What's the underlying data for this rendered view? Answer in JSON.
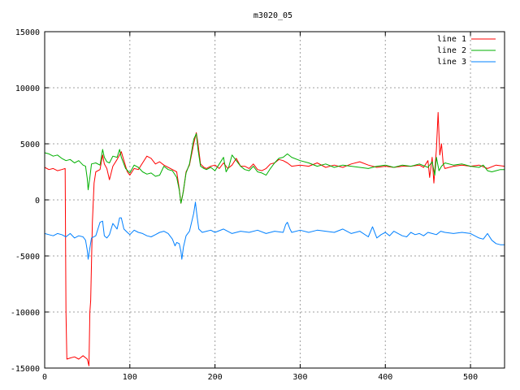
{
  "chart_data": {
    "type": "line",
    "title": "m3020_05",
    "xlabel": "",
    "ylabel": "",
    "xlim": [
      0,
      540
    ],
    "ylim": [
      -15000,
      15000
    ],
    "grid": true,
    "legend_position": "top-right",
    "x_ticks": [
      0,
      100,
      200,
      300,
      400,
      500
    ],
    "x_tick_labels": [
      "0",
      "100",
      "200",
      "300",
      "400",
      "500"
    ],
    "y_ticks": [
      -15000,
      -10000,
      -5000,
      0,
      5000,
      10000,
      15000
    ],
    "y_tick_labels": [
      "-15000",
      "-10000",
      "-5000",
      "0",
      "5000",
      "10000",
      "15000"
    ],
    "series": [
      {
        "name": "line 1",
        "color": "#ff0000",
        "points": [
          [
            0,
            2900
          ],
          [
            5,
            2700
          ],
          [
            10,
            2800
          ],
          [
            15,
            2600
          ],
          [
            20,
            2700
          ],
          [
            24,
            2800
          ],
          [
            25,
            -10000
          ],
          [
            26,
            -14200
          ],
          [
            30,
            -14100
          ],
          [
            35,
            -14000
          ],
          [
            40,
            -14200
          ],
          [
            45,
            -13900
          ],
          [
            50,
            -14200
          ],
          [
            52,
            -14800
          ],
          [
            53,
            -10000
          ],
          [
            54,
            -9000
          ],
          [
            56,
            -2000
          ],
          [
            58,
            1500
          ],
          [
            60,
            2500
          ],
          [
            65,
            2700
          ],
          [
            68,
            4000
          ],
          [
            70,
            3200
          ],
          [
            73,
            2800
          ],
          [
            76,
            1800
          ],
          [
            80,
            3000
          ],
          [
            85,
            3600
          ],
          [
            90,
            4300
          ],
          [
            93,
            3500
          ],
          [
            97,
            2500
          ],
          [
            100,
            2200
          ],
          [
            105,
            2800
          ],
          [
            110,
            2700
          ],
          [
            115,
            3300
          ],
          [
            120,
            3900
          ],
          [
            125,
            3700
          ],
          [
            130,
            3200
          ],
          [
            135,
            3400
          ],
          [
            140,
            3100
          ],
          [
            145,
            2900
          ],
          [
            150,
            2700
          ],
          [
            155,
            2500
          ],
          [
            158,
            1000
          ],
          [
            160,
            -300
          ],
          [
            163,
            800
          ],
          [
            166,
            2500
          ],
          [
            170,
            3100
          ],
          [
            175,
            5000
          ],
          [
            178,
            6000
          ],
          [
            180,
            5000
          ],
          [
            183,
            3200
          ],
          [
            187,
            2900
          ],
          [
            190,
            2800
          ],
          [
            195,
            3000
          ],
          [
            200,
            3100
          ],
          [
            205,
            2800
          ],
          [
            210,
            3300
          ],
          [
            215,
            2800
          ],
          [
            220,
            3100
          ],
          [
            225,
            3700
          ],
          [
            230,
            3000
          ],
          [
            235,
            3000
          ],
          [
            240,
            2800
          ],
          [
            245,
            3200
          ],
          [
            250,
            2700
          ],
          [
            255,
            2600
          ],
          [
            260,
            2800
          ],
          [
            265,
            3200
          ],
          [
            270,
            3300
          ],
          [
            275,
            3600
          ],
          [
            280,
            3500
          ],
          [
            285,
            3300
          ],
          [
            290,
            3000
          ],
          [
            300,
            3100
          ],
          [
            310,
            3000
          ],
          [
            320,
            3300
          ],
          [
            330,
            2900
          ],
          [
            340,
            3100
          ],
          [
            350,
            2900
          ],
          [
            360,
            3200
          ],
          [
            370,
            3400
          ],
          [
            380,
            3100
          ],
          [
            390,
            2900
          ],
          [
            400,
            3000
          ],
          [
            410,
            2900
          ],
          [
            420,
            3000
          ],
          [
            430,
            3000
          ],
          [
            440,
            3100
          ],
          [
            445,
            2900
          ],
          [
            450,
            3500
          ],
          [
            452,
            2000
          ],
          [
            455,
            3800
          ],
          [
            457,
            1500
          ],
          [
            460,
            4500
          ],
          [
            462,
            7800
          ],
          [
            464,
            4000
          ],
          [
            466,
            5000
          ],
          [
            468,
            3200
          ],
          [
            470,
            2800
          ],
          [
            480,
            3000
          ],
          [
            490,
            3100
          ],
          [
            500,
            3000
          ],
          [
            510,
            3100
          ],
          [
            520,
            2800
          ],
          [
            530,
            3100
          ],
          [
            540,
            3000
          ]
        ]
      },
      {
        "name": "line 2",
        "color": "#00b000",
        "points": [
          [
            0,
            4200
          ],
          [
            5,
            4100
          ],
          [
            10,
            3900
          ],
          [
            15,
            4000
          ],
          [
            20,
            3700
          ],
          [
            25,
            3500
          ],
          [
            30,
            3600
          ],
          [
            35,
            3300
          ],
          [
            40,
            3500
          ],
          [
            45,
            3100
          ],
          [
            48,
            3000
          ],
          [
            50,
            1900
          ],
          [
            51,
            900
          ],
          [
            53,
            2000
          ],
          [
            55,
            3200
          ],
          [
            60,
            3300
          ],
          [
            65,
            3100
          ],
          [
            68,
            4500
          ],
          [
            70,
            3800
          ],
          [
            73,
            3400
          ],
          [
            76,
            3300
          ],
          [
            80,
            3900
          ],
          [
            85,
            3800
          ],
          [
            88,
            4500
          ],
          [
            90,
            3800
          ],
          [
            95,
            2800
          ],
          [
            100,
            2400
          ],
          [
            105,
            3100
          ],
          [
            110,
            2900
          ],
          [
            115,
            2500
          ],
          [
            120,
            2300
          ],
          [
            125,
            2400
          ],
          [
            130,
            2100
          ],
          [
            135,
            2200
          ],
          [
            140,
            3000
          ],
          [
            145,
            2700
          ],
          [
            150,
            2600
          ],
          [
            155,
            2000
          ],
          [
            158,
            900
          ],
          [
            160,
            -300
          ],
          [
            162,
            400
          ],
          [
            166,
            2400
          ],
          [
            170,
            3200
          ],
          [
            175,
            5400
          ],
          [
            178,
            5900
          ],
          [
            180,
            4500
          ],
          [
            183,
            3000
          ],
          [
            187,
            2800
          ],
          [
            190,
            2700
          ],
          [
            195,
            2900
          ],
          [
            200,
            2600
          ],
          [
            205,
            3200
          ],
          [
            210,
            3800
          ],
          [
            213,
            2500
          ],
          [
            216,
            2900
          ],
          [
            220,
            4000
          ],
          [
            225,
            3500
          ],
          [
            230,
            3000
          ],
          [
            235,
            2700
          ],
          [
            240,
            2600
          ],
          [
            245,
            3000
          ],
          [
            250,
            2500
          ],
          [
            255,
            2400
          ],
          [
            260,
            2200
          ],
          [
            265,
            2800
          ],
          [
            270,
            3300
          ],
          [
            275,
            3700
          ],
          [
            280,
            3800
          ],
          [
            285,
            4100
          ],
          [
            290,
            3800
          ],
          [
            300,
            3500
          ],
          [
            310,
            3300
          ],
          [
            320,
            3000
          ],
          [
            330,
            3200
          ],
          [
            340,
            2900
          ],
          [
            350,
            3100
          ],
          [
            360,
            3000
          ],
          [
            370,
            2900
          ],
          [
            380,
            2800
          ],
          [
            390,
            3000
          ],
          [
            400,
            3100
          ],
          [
            410,
            2900
          ],
          [
            420,
            3100
          ],
          [
            430,
            3000
          ],
          [
            440,
            3200
          ],
          [
            450,
            2900
          ],
          [
            455,
            3400
          ],
          [
            458,
            2200
          ],
          [
            460,
            3800
          ],
          [
            463,
            2600
          ],
          [
            466,
            3000
          ],
          [
            470,
            3300
          ],
          [
            480,
            3100
          ],
          [
            490,
            3200
          ],
          [
            500,
            3000
          ],
          [
            510,
            2900
          ],
          [
            515,
            3100
          ],
          [
            520,
            2600
          ],
          [
            525,
            2500
          ],
          [
            530,
            2600
          ],
          [
            535,
            2700
          ],
          [
            540,
            2700
          ]
        ]
      },
      {
        "name": "line 3",
        "color": "#0080ff",
        "points": [
          [
            0,
            -3000
          ],
          [
            5,
            -3100
          ],
          [
            10,
            -3200
          ],
          [
            15,
            -3000
          ],
          [
            20,
            -3100
          ],
          [
            25,
            -3300
          ],
          [
            30,
            -3000
          ],
          [
            35,
            -3400
          ],
          [
            40,
            -3200
          ],
          [
            45,
            -3300
          ],
          [
            48,
            -3600
          ],
          [
            50,
            -4500
          ],
          [
            51,
            -5300
          ],
          [
            53,
            -4300
          ],
          [
            55,
            -3400
          ],
          [
            60,
            -3200
          ],
          [
            65,
            -2000
          ],
          [
            68,
            -1900
          ],
          [
            70,
            -3200
          ],
          [
            73,
            -3400
          ],
          [
            76,
            -3100
          ],
          [
            80,
            -2100
          ],
          [
            85,
            -2600
          ],
          [
            88,
            -1600
          ],
          [
            90,
            -1600
          ],
          [
            93,
            -2600
          ],
          [
            97,
            -2900
          ],
          [
            100,
            -3100
          ],
          [
            105,
            -2700
          ],
          [
            110,
            -2900
          ],
          [
            115,
            -3000
          ],
          [
            120,
            -3200
          ],
          [
            125,
            -3300
          ],
          [
            130,
            -3100
          ],
          [
            135,
            -2900
          ],
          [
            140,
            -2800
          ],
          [
            145,
            -3000
          ],
          [
            150,
            -3500
          ],
          [
            153,
            -4100
          ],
          [
            155,
            -3800
          ],
          [
            158,
            -3900
          ],
          [
            160,
            -4600
          ],
          [
            161,
            -5300
          ],
          [
            163,
            -4200
          ],
          [
            166,
            -3200
          ],
          [
            170,
            -2800
          ],
          [
            175,
            -1200
          ],
          [
            177,
            -200
          ],
          [
            179,
            -1500
          ],
          [
            181,
            -2600
          ],
          [
            185,
            -2900
          ],
          [
            190,
            -2800
          ],
          [
            195,
            -2700
          ],
          [
            200,
            -2900
          ],
          [
            210,
            -2600
          ],
          [
            220,
            -3000
          ],
          [
            230,
            -2800
          ],
          [
            240,
            -2900
          ],
          [
            250,
            -2700
          ],
          [
            260,
            -3000
          ],
          [
            270,
            -2800
          ],
          [
            280,
            -2900
          ],
          [
            283,
            -2200
          ],
          [
            285,
            -2000
          ],
          [
            288,
            -2600
          ],
          [
            290,
            -2900
          ],
          [
            300,
            -2700
          ],
          [
            310,
            -2900
          ],
          [
            320,
            -2700
          ],
          [
            330,
            -2800
          ],
          [
            340,
            -2900
          ],
          [
            350,
            -2600
          ],
          [
            360,
            -3000
          ],
          [
            370,
            -2800
          ],
          [
            380,
            -3300
          ],
          [
            385,
            -2400
          ],
          [
            390,
            -3400
          ],
          [
            395,
            -3100
          ],
          [
            400,
            -2900
          ],
          [
            405,
            -3200
          ],
          [
            410,
            -2800
          ],
          [
            415,
            -3000
          ],
          [
            420,
            -3200
          ],
          [
            425,
            -3300
          ],
          [
            430,
            -2900
          ],
          [
            435,
            -3100
          ],
          [
            440,
            -3000
          ],
          [
            445,
            -3200
          ],
          [
            450,
            -2900
          ],
          [
            455,
            -3000
          ],
          [
            460,
            -3100
          ],
          [
            465,
            -2800
          ],
          [
            470,
            -2900
          ],
          [
            480,
            -3000
          ],
          [
            490,
            -2900
          ],
          [
            500,
            -3000
          ],
          [
            505,
            -3200
          ],
          [
            510,
            -3400
          ],
          [
            515,
            -3500
          ],
          [
            520,
            -3000
          ],
          [
            525,
            -3600
          ],
          [
            530,
            -3900
          ],
          [
            535,
            -4000
          ],
          [
            540,
            -4000
          ]
        ]
      }
    ]
  }
}
